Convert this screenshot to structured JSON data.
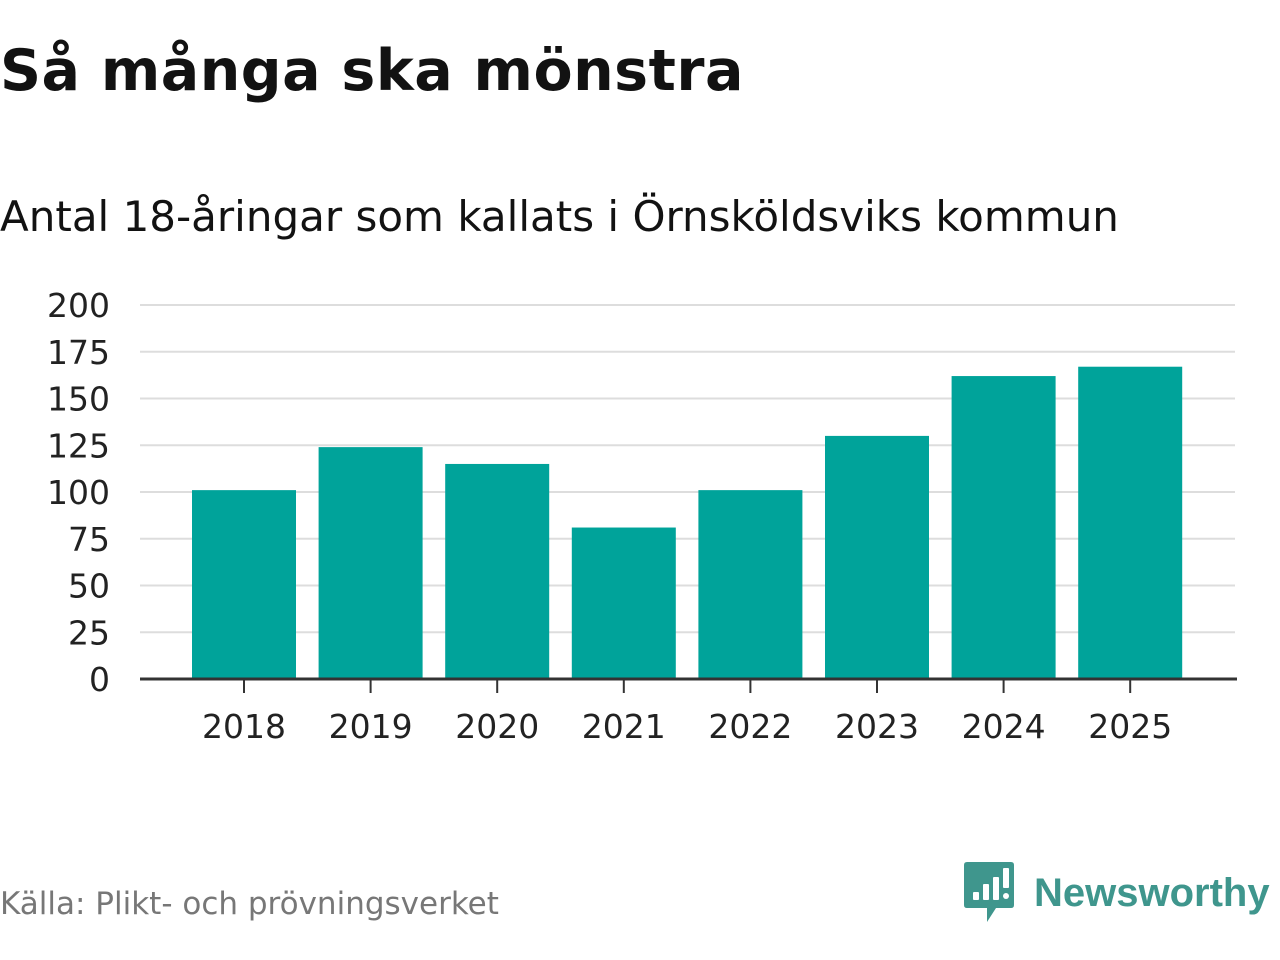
{
  "chart_data": {
    "type": "bar",
    "title": "Så många ska mönstra",
    "subtitle": "Antal 18-åringar som kallats i Örnsköldsviks kommun",
    "categories": [
      "2018",
      "2019",
      "2020",
      "2021",
      "2022",
      "2023",
      "2024",
      "2025"
    ],
    "values": [
      101,
      124,
      115,
      81,
      101,
      130,
      162,
      167
    ],
    "xlabel": "",
    "ylabel": "",
    "ylim": [
      0,
      200
    ],
    "yticks": [
      0,
      25,
      50,
      75,
      100,
      125,
      150,
      175,
      200
    ],
    "grid": true,
    "bar_color": "#00a39a"
  },
  "source": "Källa: Plikt- och prövningsverket",
  "brand": {
    "name": "Newsworthy",
    "logo_icon": "newsworthy-logo-icon",
    "color": "#3f968d"
  }
}
